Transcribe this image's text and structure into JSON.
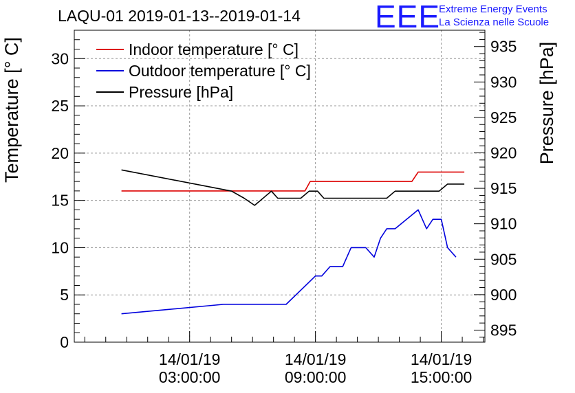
{
  "header": {
    "title": "LAQU-01 2019-01-13--2019-01-14",
    "logo_mark": "EEE",
    "logo_line1": "Extreme Energy Events",
    "logo_line2": "La Scienza nelle Scuole"
  },
  "colors": {
    "indoor": "#dd0000",
    "outdoor": "#0000dd",
    "pressure": "#000000",
    "grid": "#999999",
    "logo": "#1a1aff"
  },
  "chart_data": {
    "type": "line",
    "title": "LAQU-01 2019-01-13--2019-01-14",
    "ylabel": "Temperature [° C]",
    "y2label": "Pressure [hPa]",
    "xlabel": "",
    "ylim": [
      0,
      33
    ],
    "y2lim": [
      893.3,
      937.3
    ],
    "xlim": [
      -2.5,
      17.08
    ],
    "grid": true,
    "legend_position": "top-left",
    "yticks": [
      0,
      5,
      10,
      15,
      20,
      25,
      30
    ],
    "y2ticks": [
      895,
      900,
      905,
      910,
      915,
      920,
      925,
      930,
      935
    ],
    "xticks": [
      {
        "x": 3,
        "date": "14/01/19",
        "time": "03:00:00"
      },
      {
        "x": 9,
        "date": "14/01/19",
        "time": "09:00:00"
      },
      {
        "x": 15,
        "date": "14/01/19",
        "time": "15:00:00"
      }
    ],
    "series": [
      {
        "name": "Indoor temperature [° C]",
        "axis": "left",
        "color": "#dd0000",
        "points": [
          [
            -0.25,
            16
          ],
          [
            8.5,
            16
          ],
          [
            8.75,
            17
          ],
          [
            13.6,
            17
          ],
          [
            13.9,
            18
          ],
          [
            16.1,
            18
          ]
        ]
      },
      {
        "name": "Outdoor temperature [° C]",
        "axis": "left",
        "color": "#0000dd",
        "points": [
          [
            -0.25,
            3
          ],
          [
            4.6,
            4
          ],
          [
            7.6,
            4
          ],
          [
            9.0,
            7
          ],
          [
            9.3,
            7
          ],
          [
            9.7,
            8
          ],
          [
            10.3,
            8
          ],
          [
            10.7,
            10
          ],
          [
            11.4,
            10
          ],
          [
            11.8,
            9
          ],
          [
            12.1,
            11
          ],
          [
            12.4,
            12
          ],
          [
            12.8,
            12
          ],
          [
            13.9,
            14
          ],
          [
            14.3,
            12
          ],
          [
            14.6,
            13
          ],
          [
            15.0,
            13
          ],
          [
            15.3,
            10
          ],
          [
            15.7,
            9
          ]
        ]
      },
      {
        "name": "Pressure [hPa]",
        "axis": "right",
        "color": "#000000",
        "points": [
          [
            -0.25,
            917.6
          ],
          [
            5.0,
            914.6
          ],
          [
            5.6,
            913.6
          ],
          [
            6.1,
            912.6
          ],
          [
            6.9,
            914.6
          ],
          [
            7.2,
            913.6
          ],
          [
            8.3,
            913.6
          ],
          [
            8.7,
            914.6
          ],
          [
            9.1,
            914.6
          ],
          [
            9.4,
            913.6
          ],
          [
            12.4,
            913.6
          ],
          [
            12.8,
            914.6
          ],
          [
            14.9,
            914.6
          ],
          [
            15.3,
            915.6
          ],
          [
            16.1,
            915.6
          ]
        ]
      }
    ]
  }
}
